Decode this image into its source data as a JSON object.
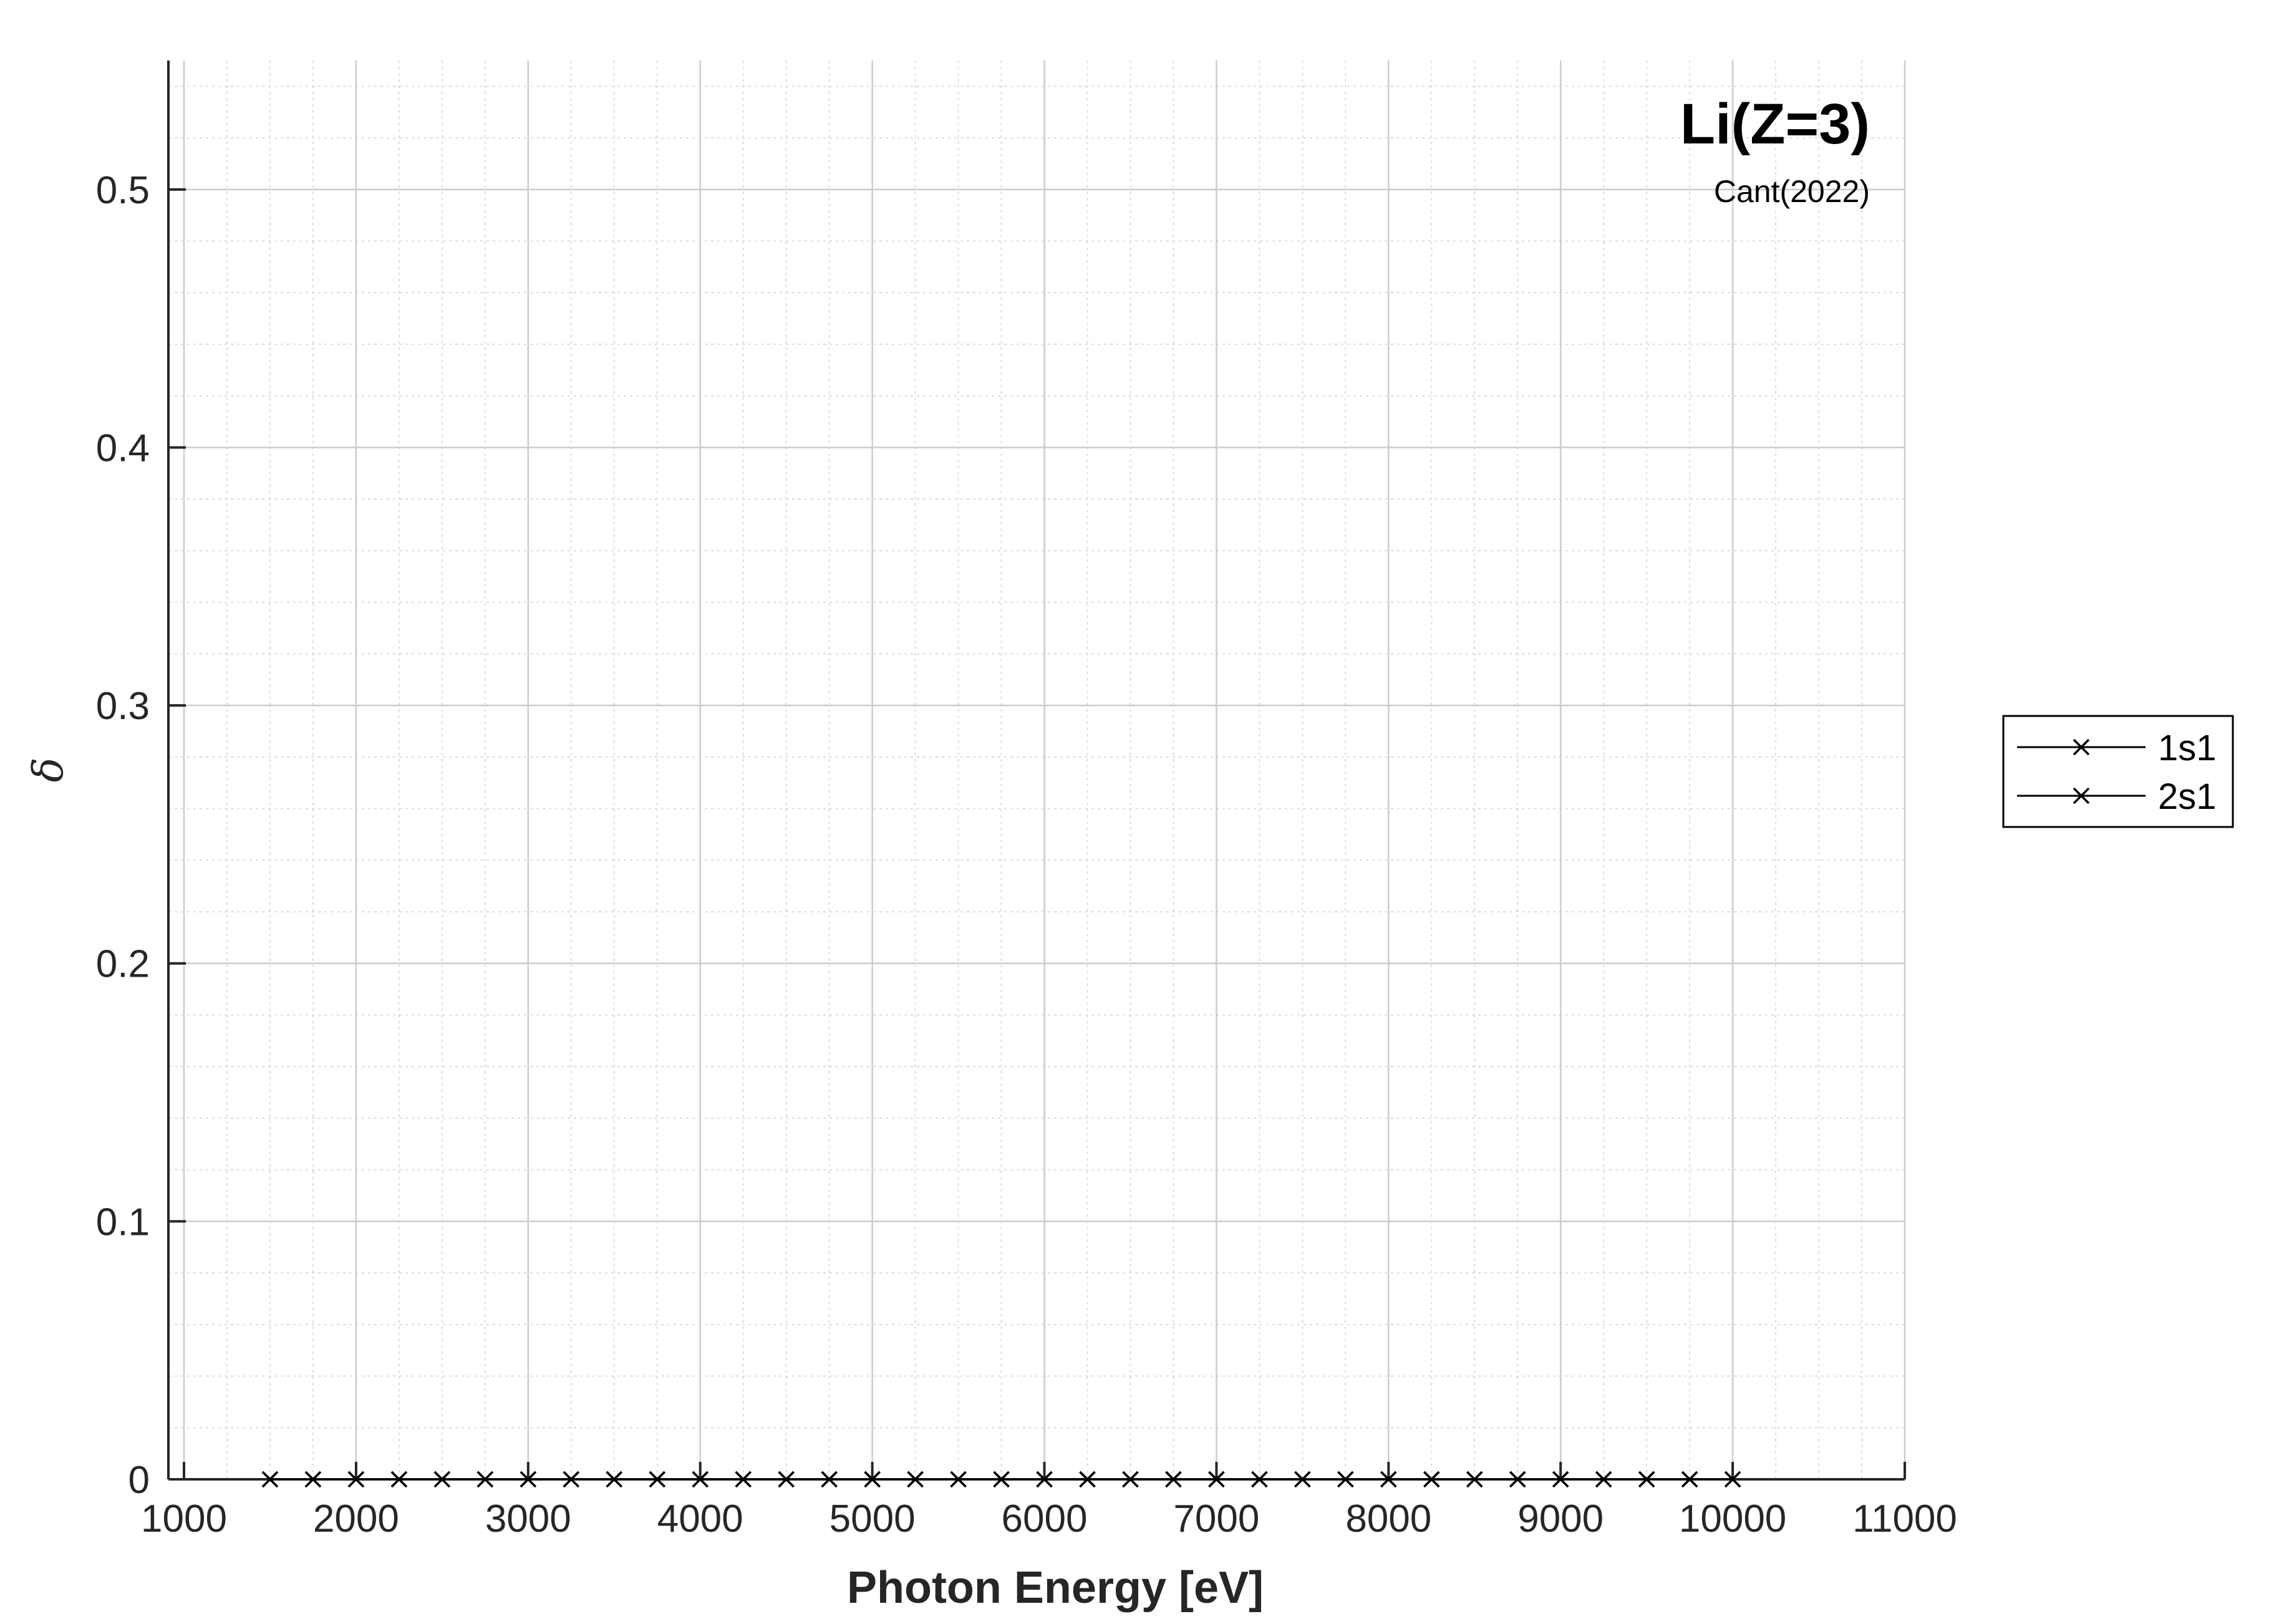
{
  "chart_data": {
    "type": "line",
    "title": "Li(Z=3)",
    "subtitle": "Cant(2022)",
    "xlabel": "Photon Energy [eV]",
    "ylabel": "δ",
    "xlim": [
      1000,
      11000
    ],
    "ylim": [
      0,
      0.55
    ],
    "x_ticks": [
      "1000",
      "2000",
      "3000",
      "4000",
      "5000",
      "6000",
      "7000",
      "8000",
      "9000",
      "10000",
      "11000"
    ],
    "y_ticks": [
      "0",
      "0.1",
      "0.2",
      "0.3",
      "0.4",
      "0.5"
    ],
    "grid": true,
    "minor_grid": true,
    "legend_position": "outside-right",
    "x": [
      1500,
      1750,
      2000,
      2250,
      2500,
      2750,
      3000,
      3250,
      3500,
      3750,
      4000,
      4250,
      4500,
      4750,
      5000,
      5250,
      5500,
      5750,
      6000,
      6250,
      6500,
      6750,
      7000,
      7250,
      7500,
      7750,
      8000,
      8250,
      8500,
      8750,
      9000,
      9250,
      9500,
      9750,
      10000
    ],
    "series": [
      {
        "name": "1s1",
        "color": "#000000",
        "marker": "x",
        "values": [
          0,
          0,
          0,
          0,
          0,
          0,
          0,
          0,
          0,
          0,
          0,
          0,
          0,
          0,
          0,
          0,
          0,
          0,
          0,
          0,
          0,
          0,
          0,
          0,
          0,
          0,
          0,
          0,
          0,
          0,
          0,
          0,
          0,
          0,
          0
        ]
      },
      {
        "name": "2s1",
        "color": "#000000",
        "marker": "x",
        "values": [
          0,
          0,
          0,
          0,
          0,
          0,
          0,
          0,
          0,
          0,
          0,
          0,
          0,
          0,
          0,
          0,
          0,
          0,
          0,
          0,
          0,
          0,
          0,
          0,
          0,
          0,
          0,
          0,
          0,
          0,
          0,
          0,
          0,
          0,
          0
        ]
      }
    ]
  }
}
